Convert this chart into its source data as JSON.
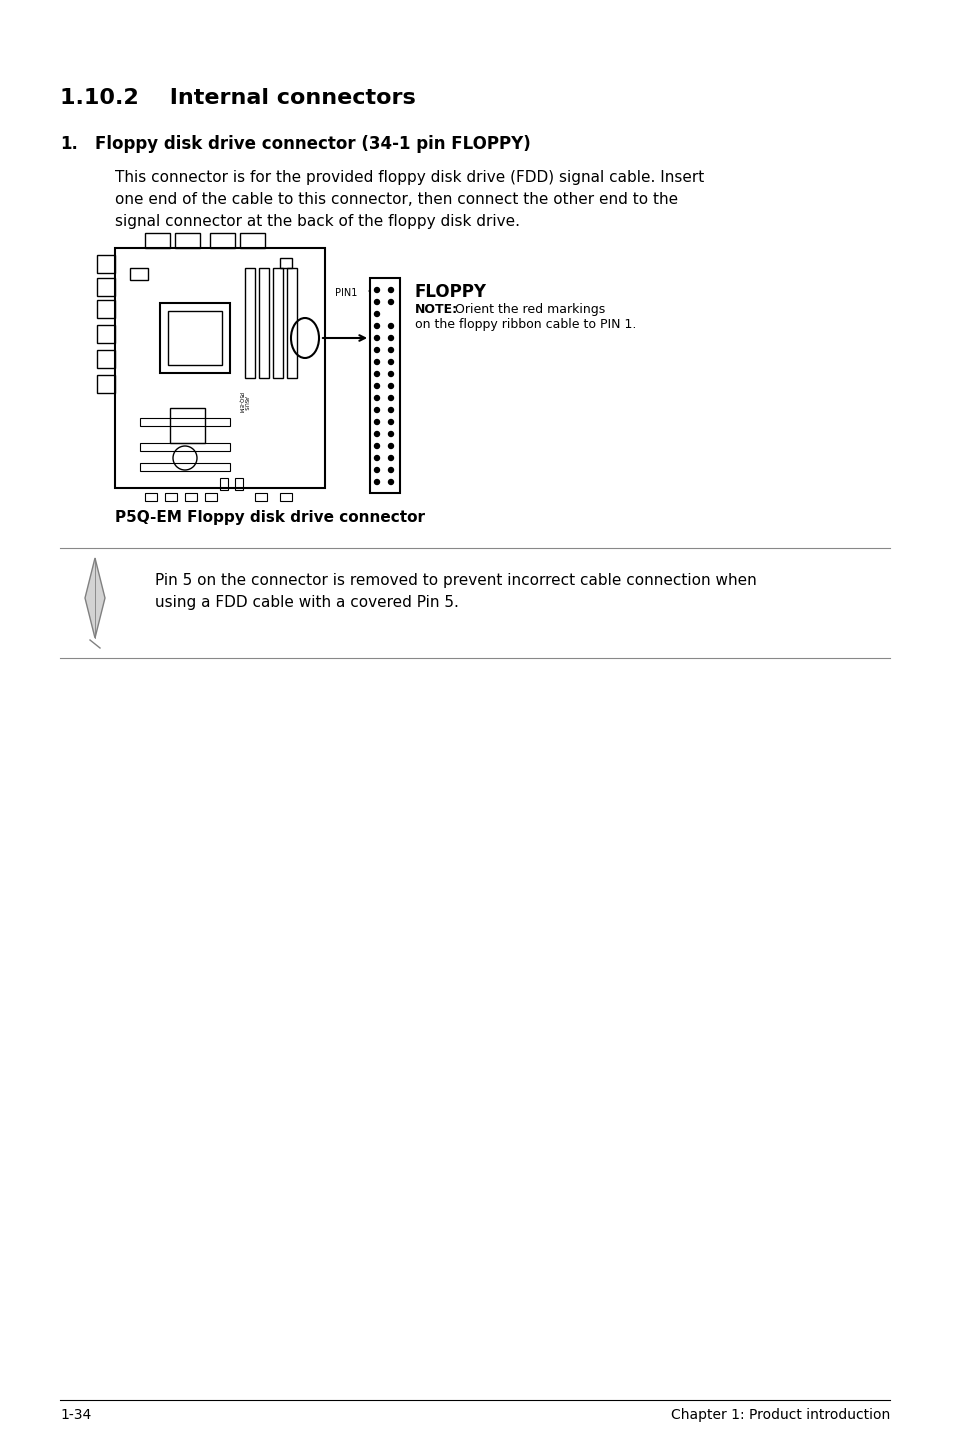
{
  "title": "1.10.2    Internal connectors",
  "section_num": "1.",
  "section_title": "Floppy disk drive connector (34-1 pin FLOPPY)",
  "body_text": "This connector is for the provided floppy disk drive (FDD) signal cable. Insert\none end of the cable to this connector, then connect the other end to the\nsignal connector at the back of the floppy disk drive.",
  "diagram_caption": "P5Q-EM Floppy disk drive connector",
  "note_text": "Pin 5 on the connector is removed to prevent incorrect cable connection when\nusing a FDD cable with a covered Pin 5.",
  "floppy_label": "FLOPPY",
  "floppy_note": "NOTE:Orient the red markings\non the floppy ribbon cable to PIN 1.",
  "pin1_label": "PIN1",
  "footer_left": "1-34",
  "footer_right": "Chapter 1: Product introduction",
  "bg_color": "#ffffff",
  "text_color": "#000000",
  "line_color": "#888888"
}
